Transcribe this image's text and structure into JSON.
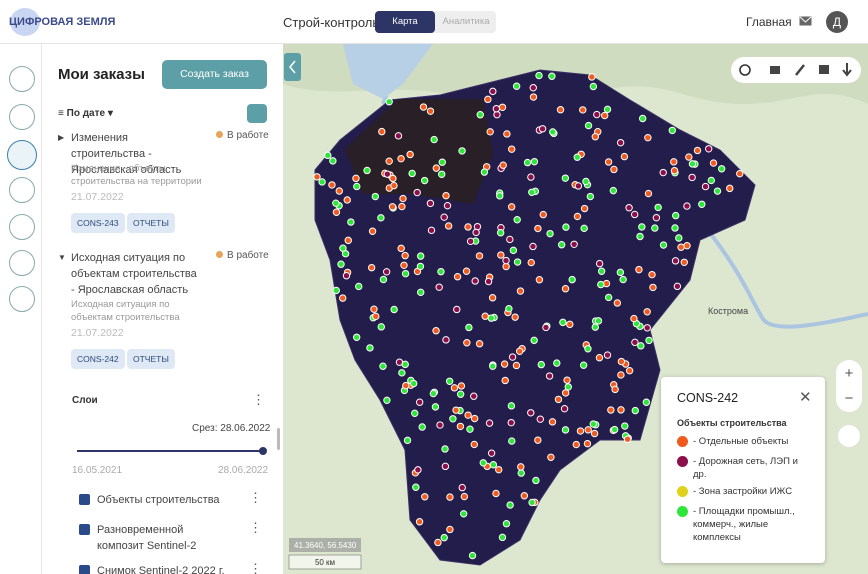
{
  "header": {
    "logo": "ЦИФРОВАЯ ЗЕМЛЯ",
    "app": "Строй-контроль",
    "tabs": [
      "Карта",
      "Аналитика"
    ],
    "home": "Главная",
    "avatar": "Д"
  },
  "sidebar": {
    "title": "Мои заказы",
    "create": "Создать заказ",
    "sort": "По дате",
    "orders": [
      {
        "title": "Изменения строительства - Ярославская область",
        "status": "В работе",
        "desc": "Изменения - объекты строительства на территории",
        "date": "21.07.2022",
        "tag": "CONS-243",
        "reports": "ОТЧЕТЫ"
      },
      {
        "title": "Исходная ситуация по объектам строительства - Ярославская область",
        "status": "В работе",
        "desc": "Исходная ситуация по объектам строительства",
        "date": "21.07.2022",
        "tag": "CONS-242",
        "reports": "ОТЧЕТЫ"
      }
    ],
    "layers": {
      "title": "Слои",
      "slice": "Срез: 28.06.2022",
      "start": "16.05.2021",
      "end": "28.06.2022",
      "items": [
        "Объекты строительства",
        "Разновременной композит Sentinel-2",
        "Снимок Sentinel-2 2022 г."
      ]
    }
  },
  "map": {
    "city": "Кострома",
    "coords": "41.3640, 56.5430",
    "scale": "50 км",
    "legend": {
      "title": "CONS-242",
      "subtitle": "Объекты строительства",
      "items": [
        "- Отдельные объекты",
        "- Дорожная сеть, ЛЭП и др.",
        "- Зона застройки ИЖС",
        "- Площадки промышл., коммерч., жилые комплексы"
      ]
    }
  }
}
